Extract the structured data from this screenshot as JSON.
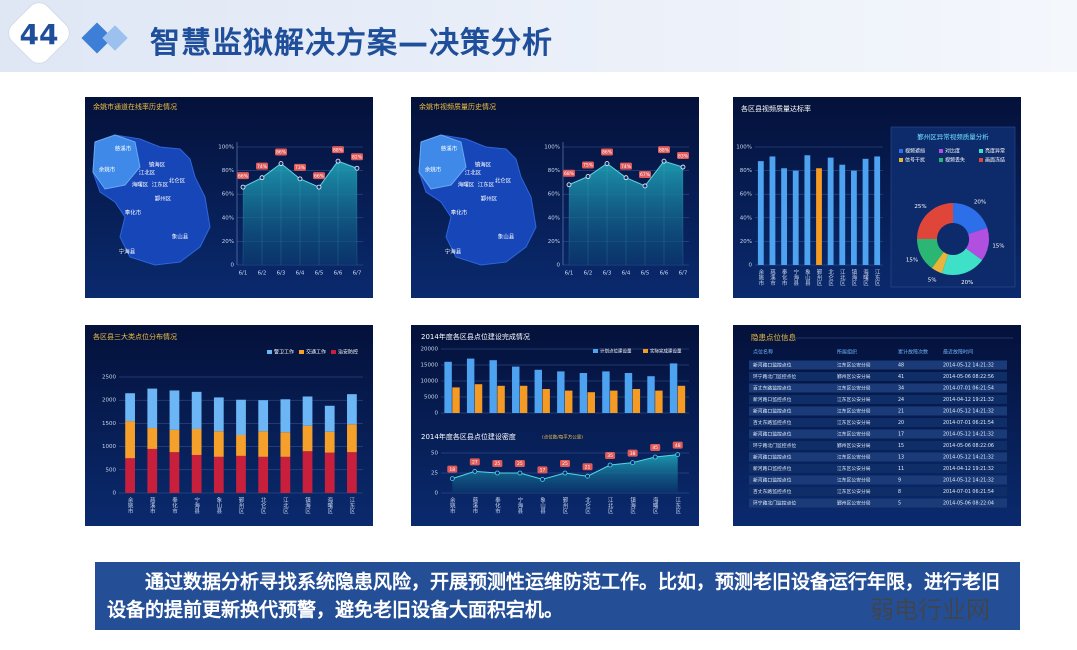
{
  "header": {
    "number": "44",
    "title": "智慧监狱解决方案—决策分析"
  },
  "chart_data": [
    {
      "type": "area",
      "title": "余姚市通道在线率历史情况",
      "map_labels": [
        "慈溪市",
        "余姚市",
        "江北区",
        "镇海区",
        "海曙区",
        "江东区",
        "北仑区",
        "鄞州区",
        "奉化市",
        "象山县",
        "宁海县"
      ],
      "categories": [
        "6/1",
        "6/2",
        "6/3",
        "6/4",
        "6/5",
        "6/6",
        "6/7"
      ],
      "values": [
        66,
        74,
        86,
        73,
        66,
        88,
        82
      ],
      "value_labels": [
        "66%",
        "74%",
        "86%",
        "73%",
        "66%",
        "88%",
        "82%"
      ],
      "color": "#5fd3e0",
      "ylim": [
        0,
        100
      ],
      "yticks": [
        0,
        {
          "value": 20,
          "label": "20%"
        },
        {
          "value": 40,
          "label": "40%"
        },
        {
          "value": 60,
          "label": "60%"
        },
        {
          "value": 80,
          "label": "80%"
        },
        {
          "value": 100,
          "label": "100%"
        }
      ]
    },
    {
      "type": "area",
      "title": "余姚市视频质量历史情况",
      "map_labels": [
        "慈溪市",
        "余姚市",
        "江北区",
        "镇海区",
        "海曙区",
        "江东区",
        "北仑区",
        "鄞州区",
        "奉化市",
        "象山县",
        "宁海县"
      ],
      "categories": [
        "6/1",
        "6/2",
        "6/3",
        "6/4",
        "6/5",
        "6/6",
        "6/7"
      ],
      "values": [
        68,
        75,
        86,
        74,
        67,
        88,
        83
      ],
      "value_labels": [
        "68%",
        "75%",
        "86%",
        "74%",
        "67%",
        "88%",
        "83%"
      ],
      "color": "#5fd3e0",
      "ylim": [
        0,
        100
      ],
      "yticks": [
        0,
        {
          "value": 20,
          "label": "20%"
        },
        {
          "value": 40,
          "label": "40%"
        },
        {
          "value": 60,
          "label": "60%"
        },
        {
          "value": 80,
          "label": "80%"
        },
        {
          "value": 100,
          "label": "100%"
        }
      ]
    },
    {
      "type": "bar",
      "title": "各区县视频质量达标率",
      "categories": [
        "余姚市",
        "慈溪市",
        "奉化市",
        "宁海县",
        "象山县",
        "鄞州区",
        "北仑区",
        "江北区",
        "镇海区",
        "海曙区",
        "江东区"
      ],
      "values": [
        88,
        92,
        82,
        80,
        93,
        82,
        91,
        85,
        80,
        90,
        92
      ],
      "colors": [
        "#4da3f0",
        "#4da3f0",
        "#4da3f0",
        "#4da3f0",
        "#4da3f0",
        "#f59a23",
        "#4da3f0",
        "#4da3f0",
        "#4da3f0",
        "#4da3f0",
        "#4da3f0"
      ],
      "ylim": [
        0,
        100
      ],
      "yticks": [
        0,
        {
          "value": 20,
          "label": "20%"
        },
        {
          "value": 40,
          "label": "40%"
        },
        {
          "value": 60,
          "label": "60%"
        },
        {
          "value": 80,
          "label": "80%"
        },
        {
          "value": 100,
          "label": "100%"
        }
      ]
    },
    {
      "type": "pie",
      "title": "鄞州区异常视频质量分析",
      "categories": [
        "视频遮挡",
        "对比度",
        "亮度异常",
        "信号干扰",
        "视频丢失",
        "画面冻结"
      ],
      "values": [
        20,
        15,
        20,
        5,
        15,
        25
      ],
      "value_labels": [
        "20%",
        "15%",
        "20%",
        "5%",
        "15%",
        "25%"
      ],
      "colors": [
        "#2d6fe8",
        "#b04fe0",
        "#3fe0c8",
        "#e8b43a",
        "#2bb673",
        "#e0453a"
      ]
    },
    {
      "type": "stacked_bar",
      "title": "各区县三大类点位分布情况",
      "categories": [
        "余姚市",
        "慈溪市",
        "奉化市",
        "宁海县",
        "象山县",
        "鄞州区",
        "北仑区",
        "江北区",
        "镇海区",
        "海曙区",
        "江东区"
      ],
      "series": [
        {
          "name": "治安防控",
          "color": "#c8203c",
          "values": [
            750,
            950,
            880,
            820,
            780,
            800,
            780,
            780,
            900,
            870,
            880
          ]
        },
        {
          "name": "交通工作",
          "color": "#f5a02a",
          "values": [
            800,
            450,
            480,
            560,
            550,
            450,
            550,
            530,
            550,
            450,
            600
          ]
        },
        {
          "name": "警卫工作",
          "color": "#6cb6f5",
          "values": [
            600,
            850,
            850,
            800,
            730,
            760,
            670,
            710,
            630,
            560,
            650
          ]
        }
      ],
      "ylim": [
        0,
        2500
      ],
      "yticks": [
        0,
        500,
        1000,
        1500,
        2000,
        2500
      ]
    },
    {
      "type": "grouped_bar",
      "title": "2014年度各区县点位建设完成情况",
      "categories": [
        "余姚市",
        "慈溪市",
        "奉化市",
        "宁海县",
        "象山县",
        "鄞州区",
        "北仑区",
        "江北区",
        "镇海区",
        "海曙区",
        "江东区"
      ],
      "series": [
        {
          "name": "计划点位建设量",
          "color": "#4da3f0",
          "values": [
            16000,
            17000,
            16500,
            14500,
            13500,
            13000,
            12500,
            13000,
            12500,
            11500,
            15500
          ]
        },
        {
          "name": "实际完成建设量",
          "color": "#f59a23",
          "values": [
            8000,
            9000,
            8500,
            8500,
            7500,
            7000,
            6500,
            7000,
            7500,
            7000,
            8500
          ]
        }
      ],
      "ylim": [
        0,
        20000
      ],
      "yticks": [
        0,
        5000,
        10000,
        15000,
        20000
      ]
    },
    {
      "type": "line",
      "title": "2014年度各区县点位建设密度",
      "subtitle": "(点位数/每平方公里)",
      "categories": [
        "余姚市",
        "慈溪市",
        "奉化市",
        "宁海县",
        "象山县",
        "鄞州区",
        "北仑区",
        "江北区",
        "镇海区",
        "海曙区",
        "江东区"
      ],
      "values": [
        18,
        27,
        25,
        25,
        17,
        25,
        21,
        35,
        38,
        45,
        48
      ],
      "color": "#4fd8e8",
      "ylim": [
        0,
        55
      ],
      "yticks": [
        0,
        25,
        50
      ]
    }
  ],
  "table": {
    "title": "隐患点位信息",
    "columns": [
      "点位名称",
      "所属组织",
      "累计故障次数",
      "最近故障时间"
    ],
    "rows": [
      [
        "新河路口监控点位",
        "江东区公安分局",
        48,
        "2014-05-12 14:21:32"
      ],
      [
        "环宁路北门监控点位",
        "鄞州区公安分局",
        41,
        "2014-05-06 08:22:56"
      ],
      [
        "百丈东路监控点位",
        "江东区公安分局",
        34,
        "2014-07-01 06:21:54"
      ],
      [
        "新河路口监控点位",
        "江东区公安分局",
        24,
        "2014-04-12 19:21:32"
      ],
      [
        "新河路口监控点位",
        "江东区公安分局",
        21,
        "2014-05-12 14:21:32"
      ],
      [
        "百丈东路监控点位",
        "江东区公安分局",
        20,
        "2014-07-01 06:21:54"
      ],
      [
        "新河路口监控点位",
        "江东区公安分局",
        17,
        "2014-05-12 14:21:32"
      ],
      [
        "环宁路北门监控点位",
        "鄞州区公安分局",
        15,
        "2014-05-06 08:22:06"
      ],
      [
        "新河路口监控点位",
        "江东区公安分局",
        13,
        "2014-05-12 14:21:32"
      ],
      [
        "新河路口监控点位",
        "江东区公安分局",
        11,
        "2014-04-12 19:21:32"
      ],
      [
        "新河路口监控点位",
        "江东区公安分局",
        9,
        "2014-05-12 14:21:32"
      ],
      [
        "百丈东路监控点位",
        "江东区公安分局",
        8,
        "2014-07-01 06:21:54"
      ],
      [
        "环宁路北门监控点位",
        "鄞州区公安分局",
        5,
        "2014-05-06 08:22:04"
      ]
    ]
  },
  "footer": {
    "text": "通过数据分析寻找系统隐患风险，开展预测性运维防范工作。比如，预测老旧设备运行年限，进行老旧设备的提前更新换代预警，避免老旧设备大面积宕机。"
  },
  "watermark": "弱电行业网"
}
